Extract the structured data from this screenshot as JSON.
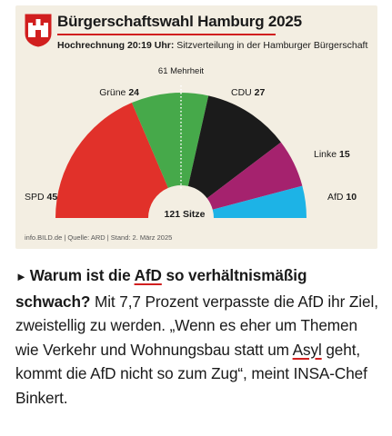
{
  "graphic": {
    "title": "Bürgerschaftswahl Hamburg 2025",
    "subtitle_bold": "Hochrechnung 20:19 Uhr:",
    "subtitle_text": " Sitzverteilung in der Hamburger Bürgerschaft",
    "source": "info.BILD.de | Quelle: ARD | Stand: 2. März 2025"
  },
  "chart_data": {
    "type": "pie",
    "subtype": "parliament-half-donut",
    "title": "Bürgerschaftswahl Hamburg 2025",
    "subtitle": "Hochrechnung 20:19 Uhr: Sitzverteilung in der Hamburger Bürgerschaft",
    "total_label": "121 Sitze",
    "majority_label": "61 Mehrheit",
    "total": 121,
    "majority": 61,
    "series": [
      {
        "name": "SPD",
        "value": 45,
        "color": "#e1312a"
      },
      {
        "name": "Grüne",
        "value": 24,
        "color": "#46a94a"
      },
      {
        "name": "CDU",
        "value": 27,
        "color": "#1b1b1b"
      },
      {
        "name": "Linke",
        "value": 15,
        "color": "#a5226e"
      },
      {
        "name": "AfD",
        "value": 10,
        "color": "#1db3e6"
      }
    ]
  },
  "article": {
    "arrow": "►",
    "question_part1": "Warum ist die ",
    "question_link": "AfD",
    "question_part2": " so verhältnismäßig schwach?",
    "text_part1": " Mit 7,7 Prozent verpasste die AfD ihr Ziel, zweistellig zu werden. „Wenn es eher um Themen wie Verkehr und Wohnungsbau statt um ",
    "text_link": "Asyl",
    "text_part2": " geht, kommt die AfD nicht so zum Zug“, meint INSA-Chef Binkert."
  },
  "colors": {
    "accent": "#d11f1f",
    "card_background": "#f3eee2",
    "crest_red": "#d11f1f"
  }
}
